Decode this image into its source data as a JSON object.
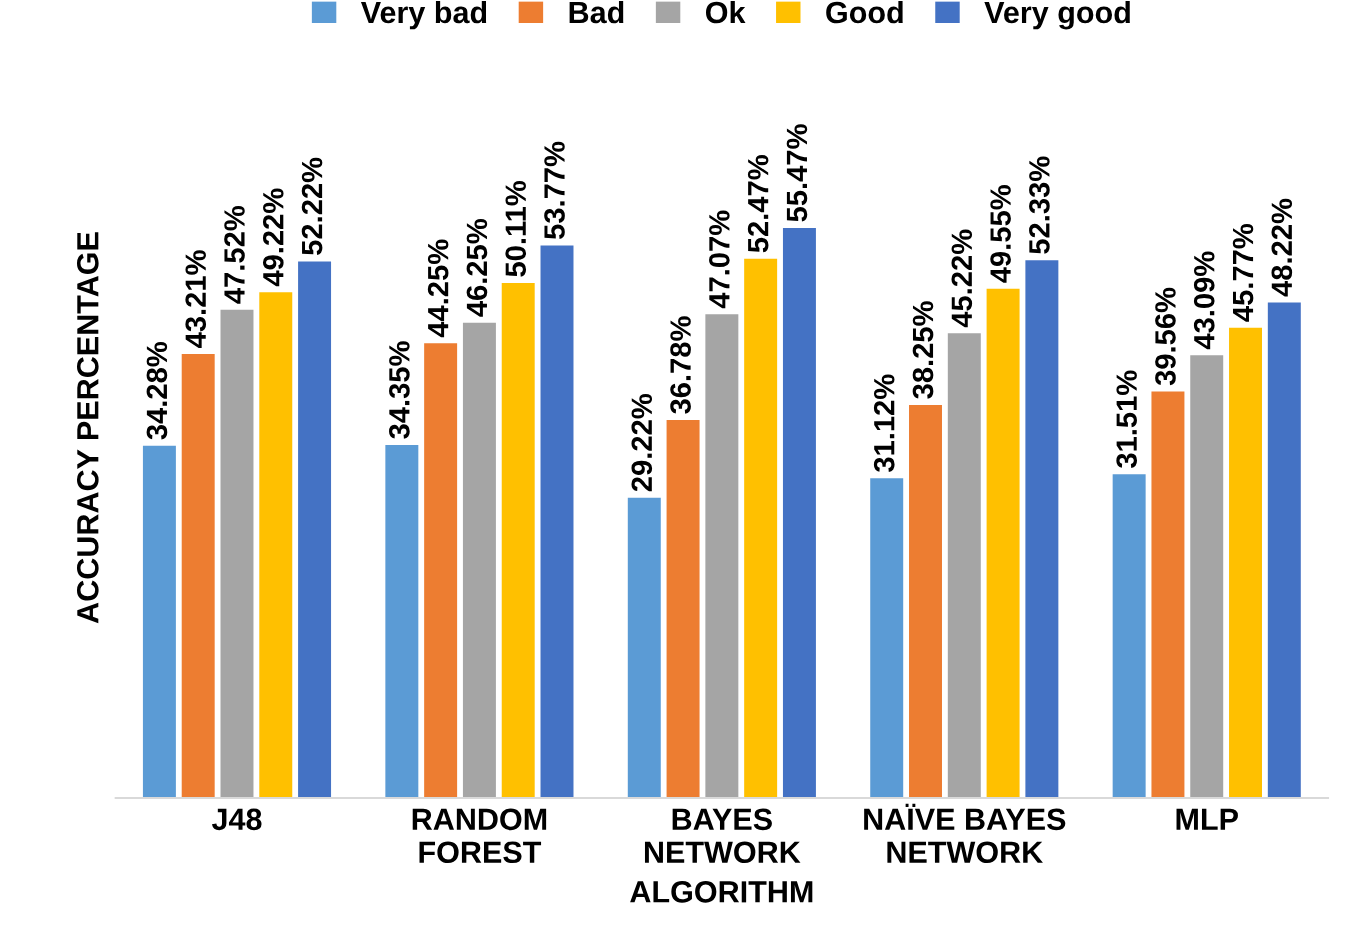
{
  "chart_data": {
    "type": "bar",
    "xlabel": "ALGORITHM",
    "ylabel": "ACCURACY PERCENTAGE",
    "categories": [
      "J48",
      "RANDOM\nFOREST",
      "BAYES\nNETWORK",
      "NAÏVE BAYES\nNETWORK",
      "MLP"
    ],
    "series": [
      {
        "name": "Very bad",
        "color": "#5b9bd5",
        "values": [
          34.28,
          34.35,
          29.22,
          31.12,
          31.51
        ],
        "value_labels": [
          "34.28%",
          "34.35%",
          "29.22%",
          "31.12%",
          "31.51%"
        ]
      },
      {
        "name": "Bad",
        "color": "#ed7d31",
        "values": [
          43.21,
          44.25,
          36.78,
          38.25,
          39.56
        ],
        "value_labels": [
          "43.21%",
          "44.25%",
          "36.78%",
          "38.25%",
          "39.56%"
        ]
      },
      {
        "name": "Ok",
        "color": "#a5a5a5",
        "values": [
          47.52,
          46.25,
          47.07,
          45.22,
          43.09
        ],
        "value_labels": [
          "47.52%",
          "46.25%",
          "47.07%",
          "45.22%",
          "43.09%"
        ]
      },
      {
        "name": "Good",
        "color": "#ffc000",
        "values": [
          49.22,
          50.11,
          52.47,
          49.55,
          45.77
        ],
        "value_labels": [
          "49.22%",
          "50.11%",
          "52.47%",
          "49.55%",
          "45.77%"
        ]
      },
      {
        "name": "Very good",
        "color": "#4472c4",
        "values": [
          52.22,
          53.77,
          55.47,
          52.33,
          48.22
        ],
        "value_labels": [
          "52.22%",
          "53.77%",
          "55.47%",
          "52.33%",
          "48.22%"
        ]
      }
    ],
    "tick_labels": "x",
    "grid": false,
    "legend": "top"
  }
}
